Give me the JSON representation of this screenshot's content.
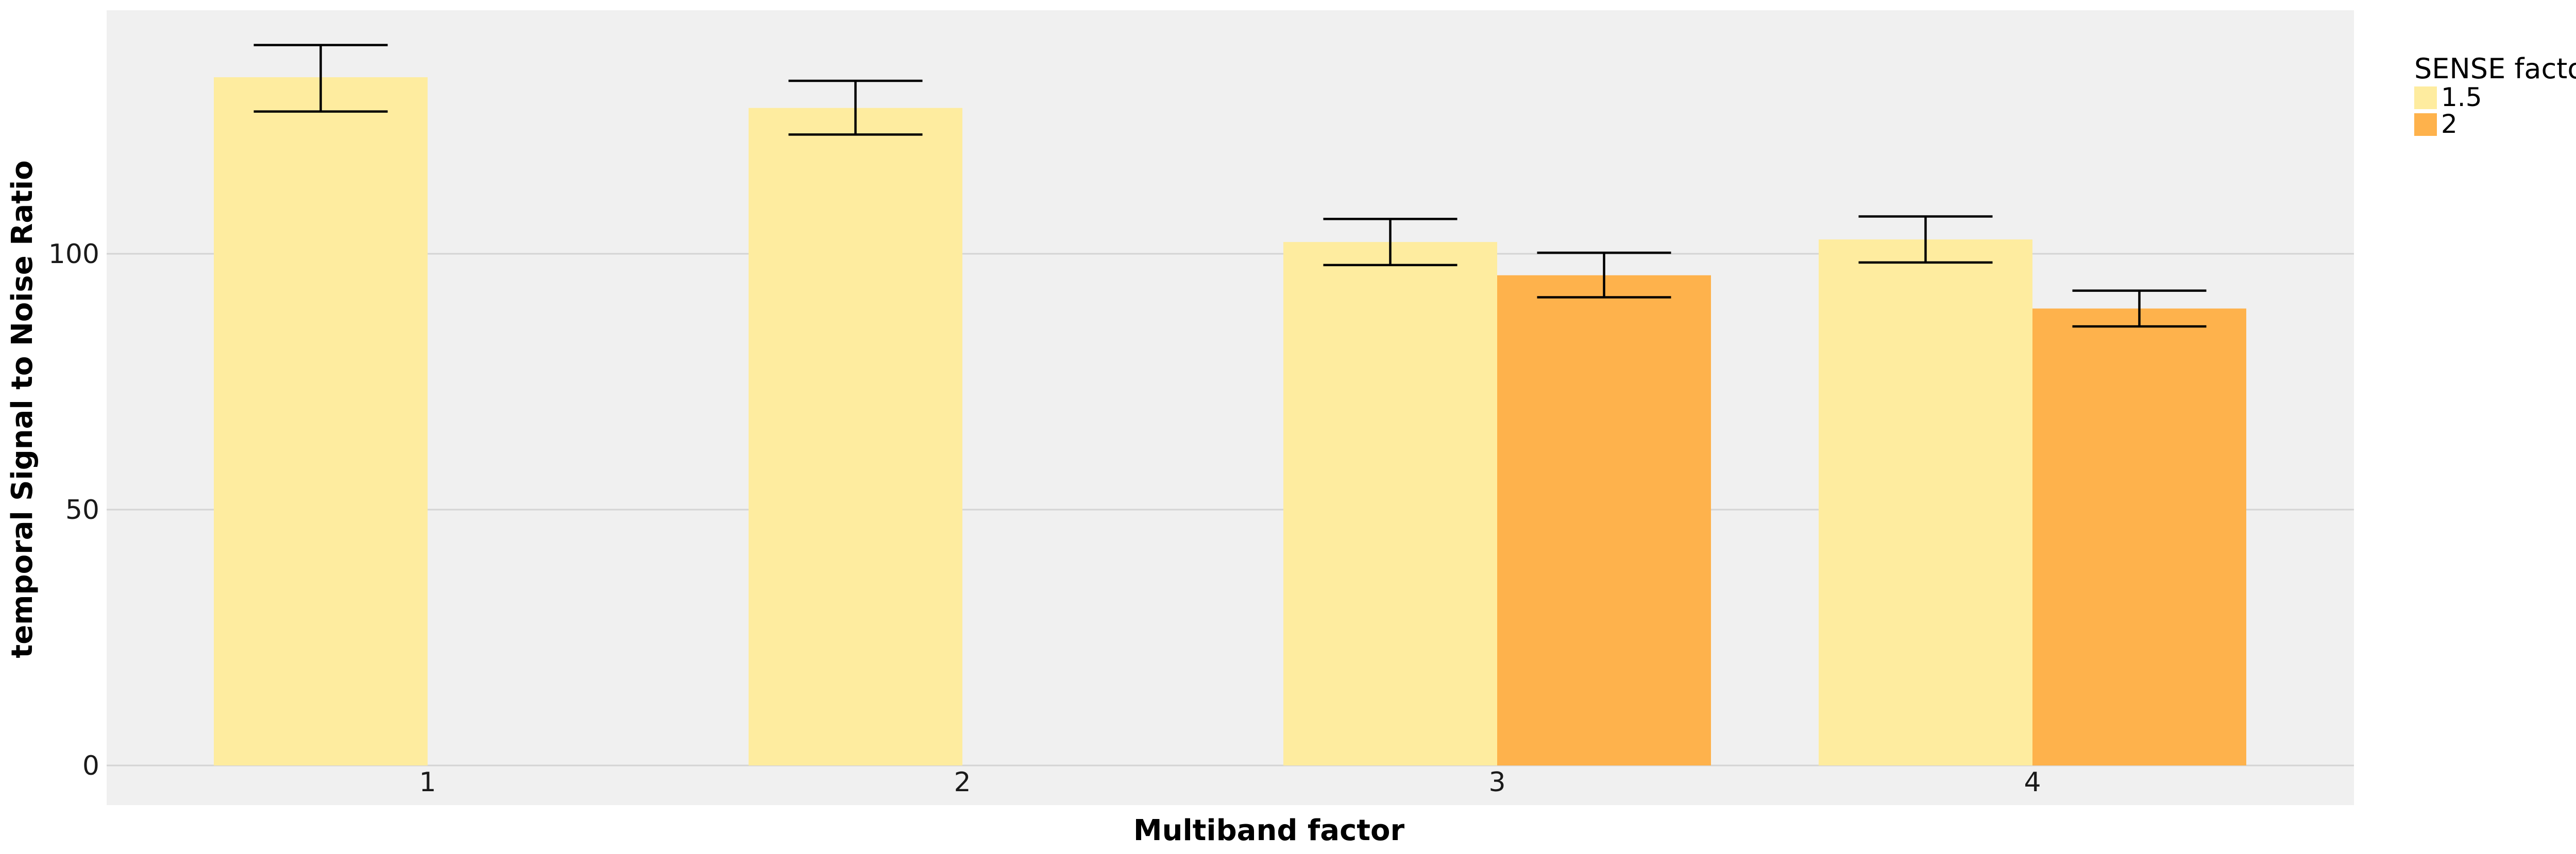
{
  "chart_data": {
    "type": "bar",
    "title": "",
    "xlabel": "Multiband factor",
    "ylabel": "temporal Signal to Noise Ratio",
    "categories": [
      "1",
      "2",
      "3",
      "4"
    ],
    "ylim": [
      0,
      148
    ],
    "yticks": [
      0,
      50,
      100
    ],
    "grid": true,
    "legend": {
      "title": "SENSE factor",
      "placement": "right"
    },
    "series": [
      {
        "name": "1.5",
        "color": "#FEEC9F",
        "values": [
          134.5,
          128.5,
          102.3,
          102.8
        ],
        "error_low": [
          127.8,
          123.3,
          97.8,
          98.3
        ],
        "error_high": [
          140.8,
          133.8,
          106.8,
          107.3
        ]
      },
      {
        "name": "2",
        "color": "#FEB24C",
        "values": [
          null,
          null,
          95.8,
          89.3
        ],
        "error_low": [
          null,
          null,
          91.5,
          85.8
        ],
        "error_high": [
          null,
          null,
          100.2,
          92.8
        ]
      }
    ]
  }
}
